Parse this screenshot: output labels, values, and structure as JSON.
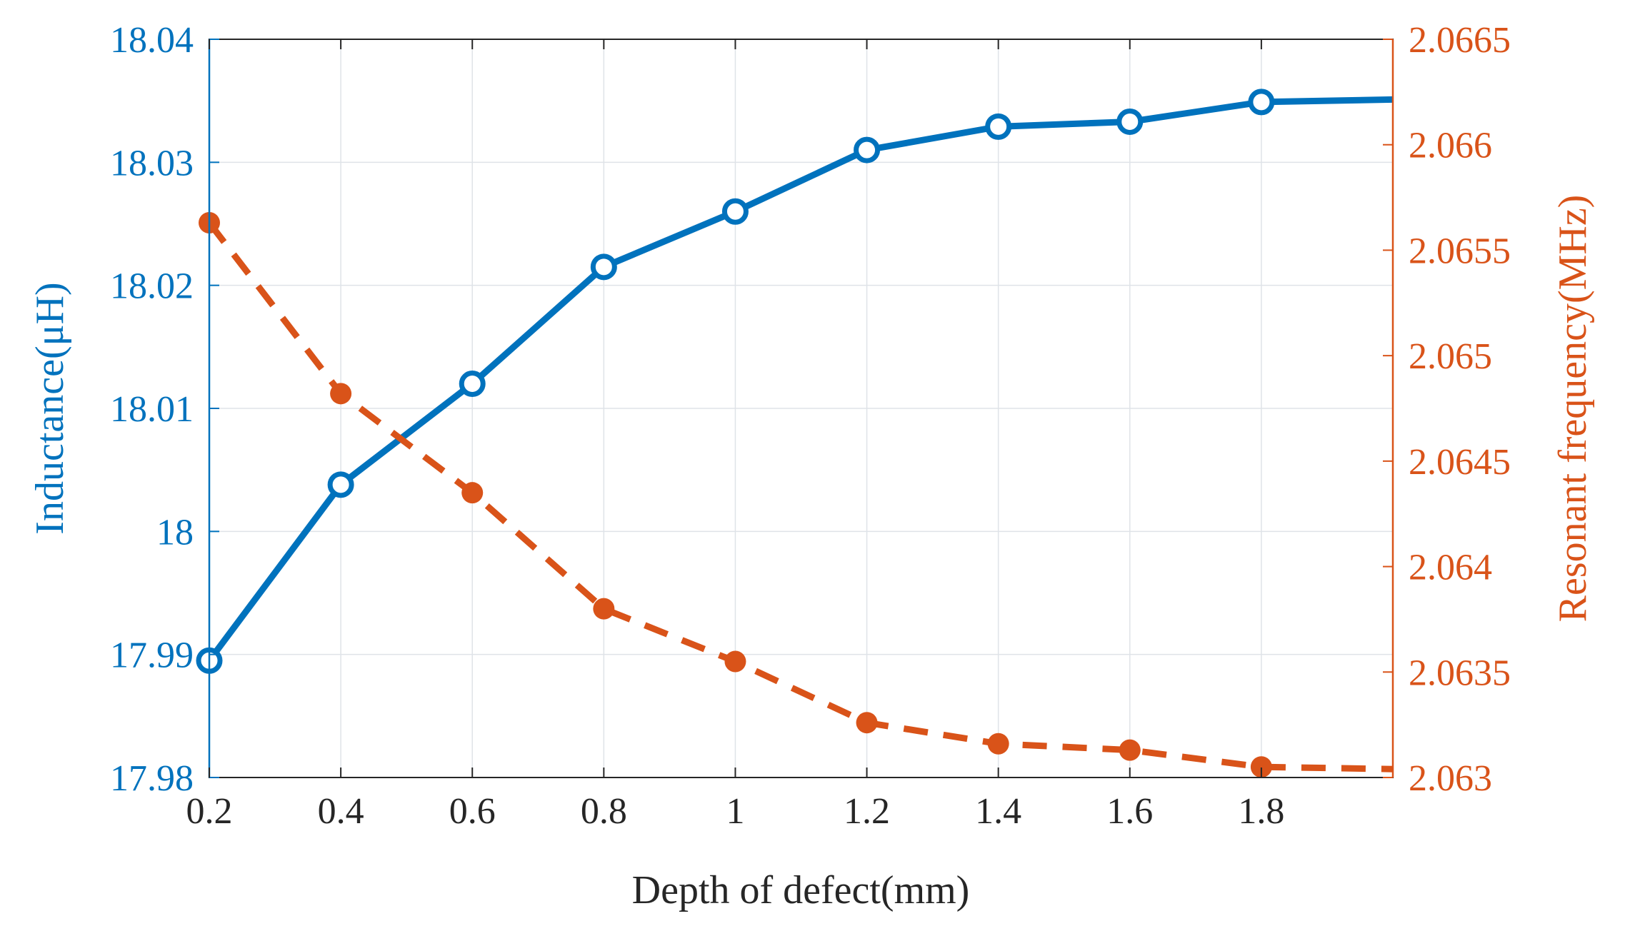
{
  "chart_data": {
    "type": "line",
    "title": "",
    "xlabel": "Depth of defect(mm)",
    "ylabel_left": "Inductance(μH)",
    "ylabel_right": "Resonant frequency(MHz)",
    "xlim": [
      0.2,
      2.0
    ],
    "ylim_left": [
      17.98,
      18.04
    ],
    "ylim_right": [
      2.063,
      2.0665
    ],
    "grid": true,
    "x_ticks": [
      0.2,
      0.4,
      0.6,
      0.8,
      1,
      1.2,
      1.4,
      1.6,
      1.8
    ],
    "x_tick_labels": [
      "0.2",
      "0.4",
      "0.6",
      "0.8",
      "1",
      "1.2",
      "1.4",
      "1.6",
      "1.8"
    ],
    "y_left_ticks": [
      17.98,
      17.99,
      18,
      18.01,
      18.02,
      18.03,
      18.04
    ],
    "y_left_tick_labels": [
      "17.98",
      "17.99",
      "18",
      "18.01",
      "18.02",
      "18.03",
      "18.04"
    ],
    "y_right_ticks": [
      2.063,
      2.0635,
      2.064,
      2.0645,
      2.065,
      2.0655,
      2.066,
      2.0665
    ],
    "y_right_tick_labels": [
      "2.063",
      "2.0635",
      "2.064",
      "2.0645",
      "2.065",
      "2.0655",
      "2.066",
      "2.0665"
    ],
    "series": [
      {
        "name": "Inductance",
        "axis": "left",
        "color": "#0072BD",
        "line_style": "solid",
        "marker": "circle",
        "x": [
          0.2,
          0.4,
          0.6,
          0.8,
          1.0,
          1.2,
          1.4,
          1.6,
          1.8
        ],
        "values": [
          17.9895,
          18.0038,
          18.012,
          18.0215,
          18.026,
          18.031,
          18.0329,
          18.0333,
          18.0349
        ],
        "line_end": [
          2.0,
          18.0351
        ]
      },
      {
        "name": "Resonant frequency",
        "axis": "right",
        "color": "#D95319",
        "line_style": "dashed",
        "marker": "dot",
        "x": [
          0.2,
          0.4,
          0.6,
          0.8,
          1.0,
          1.2,
          1.4,
          1.6,
          1.8
        ],
        "values": [
          2.06563,
          2.06482,
          2.06435,
          2.0638,
          2.06355,
          2.06326,
          2.06316,
          2.06313,
          2.06305
        ],
        "line_end": [
          2.0,
          2.06304
        ]
      }
    ]
  }
}
